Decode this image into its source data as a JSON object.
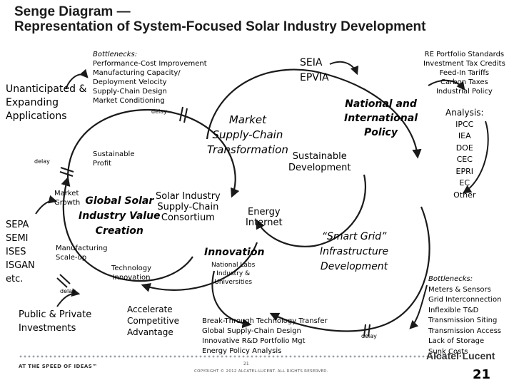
{
  "title": {
    "line1": "Senge Diagram —",
    "line2": "Representation of System-Focused Solar Industry Development"
  },
  "left": {
    "unanticipated": [
      "Unanticipated &",
      "Expanding",
      "Applications"
    ],
    "orgs": [
      "SEPA",
      "SEMI",
      "ISES",
      "ISGAN",
      "etc."
    ],
    "public_private": [
      "Public & Private",
      "Investments"
    ]
  },
  "bottlenecks_top": {
    "label": "Bottlenecks:",
    "items": [
      "Performance-Cost Improvement",
      "Manufacturing Capacity/",
      "Deployment Velocity",
      "Supply-Chain Design",
      "Market Conditioning"
    ]
  },
  "delays": {
    "top": "delay",
    "left": "delay",
    "bottom_left": "delay",
    "bottom_right": "delay"
  },
  "small_labels": {
    "sustainable_profit": [
      "Sustainable",
      "Profit"
    ],
    "market_growth": [
      "Market",
      "Growth"
    ],
    "manufacturing_scaleup": [
      "Manufacturing",
      "Scale-up"
    ],
    "technology_innovation": [
      "Technology",
      "Innovation"
    ],
    "national_labs": [
      "National Labs",
      "Industry &",
      "Universities"
    ]
  },
  "big_labels": {
    "global_solar": [
      "Global Solar",
      "Industry Value",
      "Creation"
    ],
    "consortium": [
      "Solar Industry",
      "Supply-Chain",
      "Consortium"
    ],
    "energy_internet": [
      "Energy",
      "Internet"
    ],
    "innovation": "Innovation",
    "accelerate": [
      "Accelerate",
      "Competitive",
      "Advantage"
    ],
    "market_supply": [
      "Market",
      "Supply-Chain",
      "Transformation"
    ],
    "sustainable_dev": [
      "Sustainable",
      "Development"
    ],
    "national_intl": [
      "National and",
      "International",
      "Policy"
    ],
    "smart_grid": [
      "“Smart Grid”",
      "Infrastructure",
      "Development"
    ],
    "seia": [
      "SEIA",
      "EPVIA"
    ]
  },
  "re_policy": [
    "RE Portfolio Standards",
    "Investment Tax Credits",
    "Feed-In Tariffs",
    "Carbon Taxes",
    "Industrial Policy"
  ],
  "analysis": {
    "label": "Analysis:",
    "items": [
      "IPCC",
      "IEA",
      "DOE",
      "CEC",
      "EPRI",
      "EC",
      "Other"
    ]
  },
  "bottlenecks_right": {
    "label": "Bottlenecks:",
    "items": [
      "Meters & Sensors",
      "Grid Interconnection",
      "Inflexible T&D",
      "Transmission Siting",
      "Transmission Access",
      "Lack of Storage",
      "Sunk Costs"
    ]
  },
  "breakthrough": [
    "Break-Through Technology Transfer",
    "Global Supply-Chain Design",
    "Innovative R&D Portfolio Mgt",
    "Energy Policy Analysis"
  ],
  "footer": {
    "tagline": "AT THE SPEED OF IDEAS™",
    "copyright": "COPYRIGHT © 2012 ALCATEL-LUCENT. ALL RIGHTS RESERVED.",
    "small_page": "21",
    "logo": "Alcatel·Lucent",
    "page_number": "21"
  },
  "colors": {
    "arrow": "#1a1a1a",
    "text": "#000000",
    "dots": "#9aa0a6"
  }
}
